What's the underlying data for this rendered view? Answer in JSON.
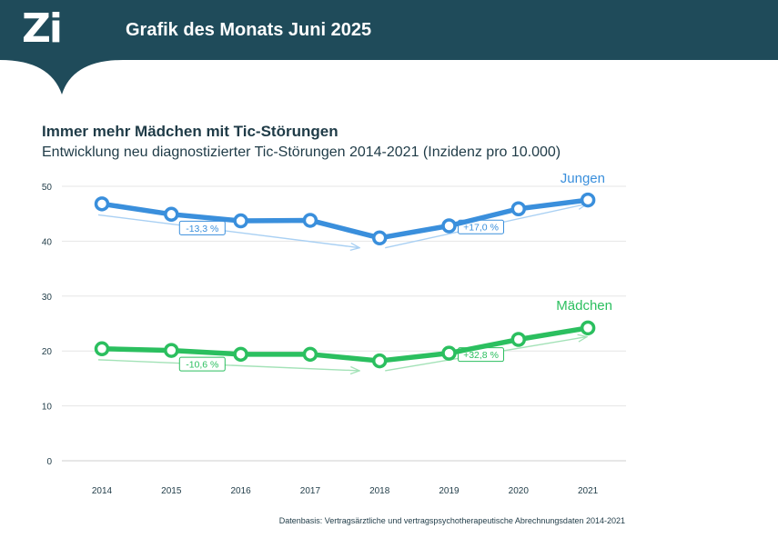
{
  "header": {
    "logo_text": "Zi",
    "title": "Grafik des Monats Juni 2025"
  },
  "source_note": "Datenbasis: Vertragsärztliche und vertragspsychotherapeutische Abrechnungsdaten 2014-2021",
  "colors": {
    "header_bg": "#1f4b5a",
    "jungen": "#3a8fdc",
    "jungen_trend": "#a9d0f3",
    "maedchen": "#2bbf5f",
    "maedchen_trend": "#a3e2b7",
    "grid": "#e6e6e6",
    "text": "#1f3b47"
  },
  "chart_data": {
    "type": "line",
    "title": "Immer mehr Mädchen mit Tic-Störungen",
    "subtitle": "Entwicklung neu diagnostizierter Tic-Störungen 2014-2021 (Inzidenz pro 10.000)",
    "xlabel": "",
    "ylabel": "",
    "ylim": [
      0,
      50
    ],
    "yticks": [
      "0",
      "10",
      "20",
      "30",
      "40",
      "50"
    ],
    "grid": true,
    "categories": [
      "2014",
      "2015",
      "2016",
      "2017",
      "2018",
      "2019",
      "2020",
      "2021"
    ],
    "series": [
      {
        "name": "Jungen",
        "values": [
          46.8,
          44.9,
          43.7,
          43.8,
          40.6,
          42.8,
          45.9,
          47.5
        ],
        "color": "#3a8fdc",
        "trends": [
          {
            "from": "2014",
            "to": "2018",
            "start": 44.8,
            "end": 38.8,
            "label": "-13,3 %"
          },
          {
            "from": "2018",
            "to": "2021",
            "start": 38.8,
            "end": 46.8,
            "label": "+17,0 %"
          }
        ]
      },
      {
        "name": "Mädchen",
        "values": [
          20.4,
          20.1,
          19.4,
          19.4,
          18.2,
          19.6,
          22.1,
          24.2
        ],
        "color": "#2bbf5f",
        "trends": [
          {
            "from": "2014",
            "to": "2018",
            "start": 18.4,
            "end": 16.4,
            "label": "-10,6 %"
          },
          {
            "from": "2018",
            "to": "2021",
            "start": 16.4,
            "end": 22.6,
            "label": "+32,8 %"
          }
        ]
      }
    ]
  }
}
